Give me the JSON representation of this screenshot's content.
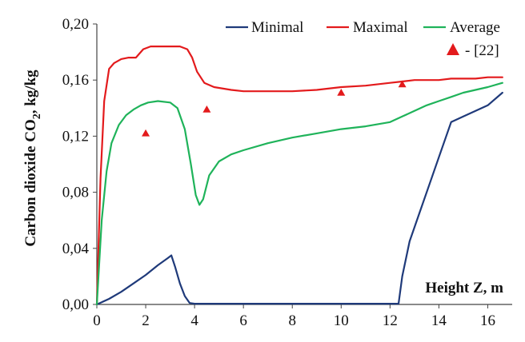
{
  "chart_data": {
    "type": "line",
    "xlabel": "Height Z, m",
    "ylabel_main": "Carbon dioxide CO",
    "ylabel_sub": "2",
    "ylabel_unit": ", kg/kg",
    "xlim": [
      0,
      17
    ],
    "ylim": [
      0,
      0.2
    ],
    "x_ticks": [
      0,
      2,
      4,
      6,
      8,
      10,
      12,
      14,
      16
    ],
    "x_tick_labels": [
      "0",
      "2",
      "4",
      "6",
      "8",
      "10",
      "12",
      "14",
      "16"
    ],
    "y_ticks": [
      0,
      0.04,
      0.08,
      0.12,
      0.16,
      0.2
    ],
    "y_tick_labels": [
      "0,00",
      "0,04",
      "0,08",
      "0,12",
      "0,16",
      "0,20"
    ],
    "grid": false,
    "legend_position": "top-right",
    "series": [
      {
        "name": "Minimal",
        "color": "#1f3a7a",
        "x": [
          0,
          0.5,
          1,
          1.5,
          2,
          2.5,
          2.9,
          3.05,
          3.2,
          3.4,
          3.6,
          3.8,
          4,
          6,
          8,
          10,
          12,
          12.35,
          12.5,
          12.8,
          13.2,
          13.6,
          14,
          14.5,
          15,
          15.5,
          16,
          16.6
        ],
        "y": [
          0,
          0.004,
          0.009,
          0.015,
          0.021,
          0.028,
          0.033,
          0.035,
          0.027,
          0.015,
          0.006,
          0.001,
          0.0005,
          0.0005,
          0.0005,
          0.0005,
          0.0005,
          0.0005,
          0.02,
          0.045,
          0.065,
          0.085,
          0.105,
          0.13,
          0.134,
          0.138,
          0.142,
          0.151
        ]
      },
      {
        "name": "Maximal",
        "color": "#e31a1c",
        "x": [
          0,
          0.15,
          0.3,
          0.5,
          0.7,
          1.0,
          1.3,
          1.6,
          1.9,
          2.2,
          2.6,
          3.0,
          3.4,
          3.7,
          3.9,
          4.1,
          4.4,
          4.8,
          5.5,
          6,
          7,
          8,
          9,
          10,
          11,
          12,
          12.5,
          13,
          13.5,
          14,
          14.5,
          15,
          15.5,
          16,
          16.6
        ],
        "y": [
          0,
          0.09,
          0.145,
          0.168,
          0.172,
          0.175,
          0.176,
          0.176,
          0.182,
          0.184,
          0.184,
          0.184,
          0.184,
          0.182,
          0.176,
          0.166,
          0.158,
          0.155,
          0.153,
          0.152,
          0.152,
          0.152,
          0.153,
          0.155,
          0.156,
          0.158,
          0.159,
          0.16,
          0.16,
          0.16,
          0.161,
          0.161,
          0.161,
          0.162,
          0.162
        ]
      },
      {
        "name": "Average",
        "color": "#1fb35a",
        "x": [
          0,
          0.2,
          0.4,
          0.6,
          0.9,
          1.2,
          1.5,
          1.8,
          2.1,
          2.5,
          3.0,
          3.3,
          3.6,
          3.85,
          4.05,
          4.2,
          4.35,
          4.6,
          5.0,
          5.5,
          6,
          7,
          8,
          9,
          10,
          11,
          12,
          12.5,
          13,
          13.5,
          14,
          14.5,
          15,
          15.5,
          16,
          16.6
        ],
        "y": [
          0,
          0.06,
          0.095,
          0.115,
          0.128,
          0.135,
          0.139,
          0.142,
          0.144,
          0.145,
          0.144,
          0.14,
          0.125,
          0.1,
          0.078,
          0.071,
          0.075,
          0.092,
          0.102,
          0.107,
          0.11,
          0.115,
          0.119,
          0.122,
          0.125,
          0.127,
          0.13,
          0.134,
          0.138,
          0.142,
          0.145,
          0.148,
          0.151,
          0.153,
          0.155,
          0.158
        ]
      }
    ],
    "reference": {
      "name": "- [22]",
      "color": "#e31a1c",
      "marker": "triangle",
      "x": [
        2.0,
        4.5,
        10.0,
        12.5
      ],
      "y": [
        0.122,
        0.139,
        0.151,
        0.157
      ]
    }
  }
}
